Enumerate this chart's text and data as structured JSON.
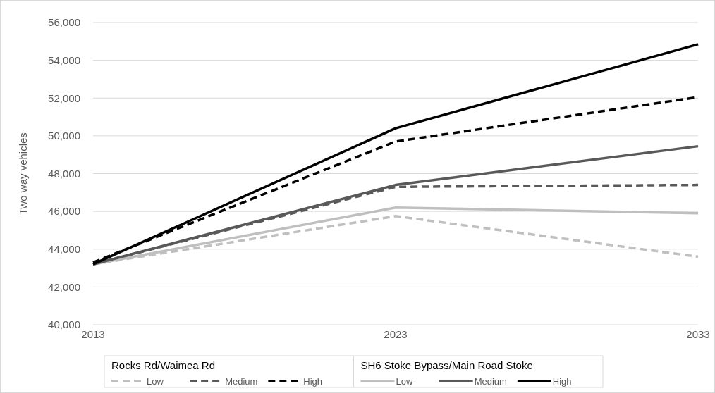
{
  "chart_data": {
    "type": "line",
    "ylabel": "Two way vehicles",
    "x": [
      2013,
      2023,
      2033
    ],
    "xlim": [
      2013,
      2033
    ],
    "xticks": [
      2013,
      2023,
      2033
    ],
    "ylim": [
      40000,
      56000
    ],
    "yticks": [
      {
        "value": 40000,
        "label": "40,000"
      },
      {
        "value": 42000,
        "label": "42,000"
      },
      {
        "value": 44000,
        "label": "44,000"
      },
      {
        "value": 46000,
        "label": "46,000"
      },
      {
        "value": 48000,
        "label": "48,000"
      },
      {
        "value": 50000,
        "label": "50,000"
      },
      {
        "value": 52000,
        "label": "52,000"
      },
      {
        "value": 54000,
        "label": "54,000"
      },
      {
        "value": 56000,
        "label": "56,000"
      }
    ],
    "grid": "y",
    "legend": "bottom",
    "annotations": [
      "Rocks Rd/Waimea Rd",
      "SH6 Stoke Bypass/Main Road Stoke"
    ],
    "series": [
      {
        "name": "Low",
        "color": "#bfbfbf",
        "line_style": "dashed",
        "values": [
          43200,
          45750,
          43600
        ]
      },
      {
        "name": "Medium",
        "color": "#595959",
        "line_style": "dashed",
        "values": [
          43200,
          47300,
          47400
        ]
      },
      {
        "name": "High",
        "color": "#000000",
        "line_style": "dashed",
        "values": [
          43300,
          49700,
          52050
        ]
      },
      {
        "name": "Low",
        "color": "#bfbfbf",
        "line_style": "solid",
        "values": [
          43200,
          46200,
          45900
        ]
      },
      {
        "name": "Medium",
        "color": "#595959",
        "line_style": "solid",
        "values": [
          43200,
          47400,
          49450
        ]
      },
      {
        "name": "High",
        "color": "#000000",
        "line_style": "solid",
        "values": [
          43200,
          50400,
          54850
        ]
      }
    ]
  }
}
